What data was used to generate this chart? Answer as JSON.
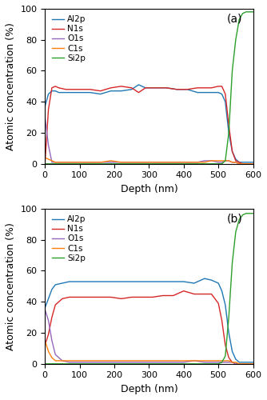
{
  "panel_a": {
    "label": "(a)",
    "Al2p": {
      "x": [
        0,
        10,
        20,
        30,
        40,
        60,
        80,
        100,
        130,
        160,
        190,
        220,
        250,
        270,
        290,
        320,
        350,
        380,
        410,
        440,
        460,
        480,
        500,
        510,
        520,
        530,
        540,
        550,
        560,
        570,
        580,
        590,
        600
      ],
      "y": [
        37,
        45,
        47,
        47,
        46,
        46,
        46,
        46,
        46,
        45,
        47,
        47,
        48,
        51,
        49,
        49,
        49,
        48,
        48,
        46,
        46,
        46,
        46,
        45,
        40,
        20,
        8,
        3,
        1,
        1,
        1,
        1,
        1
      ]
    },
    "N1s": {
      "x": [
        0,
        10,
        20,
        30,
        40,
        60,
        80,
        100,
        130,
        160,
        190,
        220,
        250,
        270,
        290,
        320,
        350,
        380,
        410,
        440,
        460,
        480,
        500,
        510,
        520,
        530,
        540,
        550,
        560,
        570,
        580,
        590,
        600
      ],
      "y": [
        0,
        35,
        49,
        50,
        49,
        48,
        48,
        48,
        48,
        47,
        49,
        50,
        49,
        46,
        49,
        49,
        49,
        48,
        48,
        49,
        49,
        49,
        50,
        50,
        45,
        25,
        8,
        2,
        1,
        0,
        0,
        0,
        0
      ]
    },
    "O1s": {
      "x": [
        0,
        10,
        20,
        30,
        40,
        60,
        80,
        100,
        130,
        160,
        190,
        220,
        250,
        270,
        290,
        320,
        350,
        380,
        410,
        440,
        460,
        480,
        500,
        510,
        520,
        530,
        540,
        550,
        560,
        570,
        580,
        590,
        600
      ],
      "y": [
        30,
        12,
        1,
        1,
        1,
        1,
        1,
        1,
        1,
        1,
        1,
        1,
        1,
        1,
        1,
        1,
        1,
        1,
        1,
        1,
        2,
        2,
        1,
        1,
        2,
        2,
        1,
        1,
        0,
        0,
        0,
        0,
        0
      ]
    },
    "C1s": {
      "x": [
        0,
        10,
        20,
        30,
        40,
        60,
        80,
        100,
        130,
        160,
        190,
        220,
        250,
        270,
        290,
        320,
        350,
        380,
        410,
        440,
        460,
        480,
        500,
        510,
        520,
        530,
        540,
        550,
        560,
        570,
        580,
        590,
        600
      ],
      "y": [
        4,
        3,
        2,
        1,
        1,
        1,
        1,
        1,
        1,
        1,
        2,
        1,
        1,
        1,
        1,
        1,
        1,
        1,
        1,
        1,
        1,
        2,
        2,
        2,
        2,
        2,
        1,
        1,
        0,
        0,
        0,
        0,
        0
      ]
    },
    "Si2p": {
      "x": [
        0,
        10,
        20,
        30,
        40,
        60,
        80,
        100,
        130,
        160,
        190,
        220,
        250,
        270,
        290,
        320,
        350,
        380,
        410,
        440,
        460,
        480,
        500,
        510,
        520,
        530,
        540,
        550,
        560,
        570,
        580,
        590,
        600
      ],
      "y": [
        0,
        0,
        0,
        0,
        0,
        0,
        0,
        0,
        0,
        0,
        0,
        0,
        0,
        0,
        0,
        0,
        0,
        0,
        0,
        0,
        0,
        0,
        0,
        0,
        2,
        20,
        60,
        80,
        93,
        97,
        98,
        98,
        98
      ]
    }
  },
  "panel_b": {
    "label": "(b)",
    "Al2p": {
      "x": [
        0,
        10,
        20,
        30,
        50,
        70,
        100,
        130,
        160,
        190,
        220,
        250,
        280,
        310,
        340,
        370,
        400,
        430,
        460,
        480,
        500,
        510,
        520,
        530,
        540,
        550,
        560,
        570,
        580,
        590,
        600
      ],
      "y": [
        36,
        42,
        48,
        51,
        52,
        53,
        53,
        53,
        53,
        53,
        53,
        53,
        53,
        53,
        53,
        53,
        53,
        52,
        55,
        54,
        52,
        47,
        38,
        20,
        8,
        3,
        1,
        1,
        1,
        1,
        1
      ]
    },
    "N1s": {
      "x": [
        0,
        10,
        20,
        30,
        50,
        70,
        100,
        130,
        160,
        190,
        220,
        250,
        280,
        310,
        340,
        370,
        400,
        430,
        460,
        480,
        500,
        510,
        520,
        530,
        540,
        550,
        560,
        570,
        580,
        590,
        600
      ],
      "y": [
        12,
        19,
        30,
        38,
        42,
        43,
        43,
        43,
        43,
        43,
        42,
        43,
        43,
        43,
        44,
        44,
        47,
        45,
        45,
        45,
        39,
        28,
        12,
        4,
        1,
        0,
        0,
        0,
        0,
        0,
        0
      ]
    },
    "O1s": {
      "x": [
        0,
        10,
        20,
        30,
        50,
        70,
        100,
        130,
        160,
        190,
        220,
        250,
        280,
        310,
        340,
        370,
        400,
        430,
        460,
        480,
        500,
        510,
        520,
        530,
        540,
        550,
        560,
        570,
        580,
        590,
        600
      ],
      "y": [
        35,
        28,
        15,
        6,
        2,
        1,
        1,
        1,
        1,
        1,
        1,
        1,
        1,
        1,
        1,
        1,
        1,
        2,
        1,
        1,
        1,
        1,
        1,
        1,
        1,
        0,
        0,
        0,
        0,
        0,
        0
      ]
    },
    "C1s": {
      "x": [
        0,
        10,
        20,
        30,
        50,
        70,
        100,
        130,
        160,
        190,
        220,
        250,
        280,
        310,
        340,
        370,
        400,
        430,
        460,
        480,
        500,
        510,
        520,
        530,
        540,
        550,
        560,
        570,
        580,
        590,
        600
      ],
      "y": [
        15,
        8,
        4,
        2,
        2,
        2,
        2,
        2,
        2,
        2,
        2,
        2,
        2,
        2,
        2,
        2,
        2,
        2,
        2,
        2,
        2,
        2,
        2,
        2,
        1,
        1,
        0,
        0,
        0,
        0,
        0
      ]
    },
    "Si2p": {
      "x": [
        0,
        10,
        20,
        30,
        50,
        70,
        100,
        130,
        160,
        190,
        220,
        250,
        280,
        310,
        340,
        370,
        400,
        430,
        460,
        480,
        500,
        510,
        520,
        530,
        540,
        550,
        560,
        570,
        580,
        590,
        600
      ],
      "y": [
        0,
        0,
        0,
        0,
        0,
        0,
        0,
        0,
        0,
        0,
        0,
        0,
        0,
        0,
        0,
        0,
        0,
        0,
        0,
        0,
        0,
        1,
        5,
        30,
        65,
        85,
        93,
        96,
        97,
        97,
        97
      ]
    }
  },
  "colors": {
    "Al2p": "#1f77b4",
    "N1s": "#d62728",
    "O1s": "#9467bd",
    "C1s": "#ff7f0e",
    "Si2p": "#2ca02c"
  },
  "xlim": [
    0,
    600
  ],
  "ylim": [
    0,
    100
  ],
  "xticks": [
    0,
    100,
    200,
    300,
    400,
    500,
    600
  ],
  "yticks": [
    0,
    20,
    40,
    60,
    80,
    100
  ],
  "xlabel": "Depth (nm)",
  "ylabel": "Atomic concentration (%)",
  "legend_order": [
    "Al2p",
    "N1s",
    "O1s",
    "C1s",
    "Si2p"
  ]
}
